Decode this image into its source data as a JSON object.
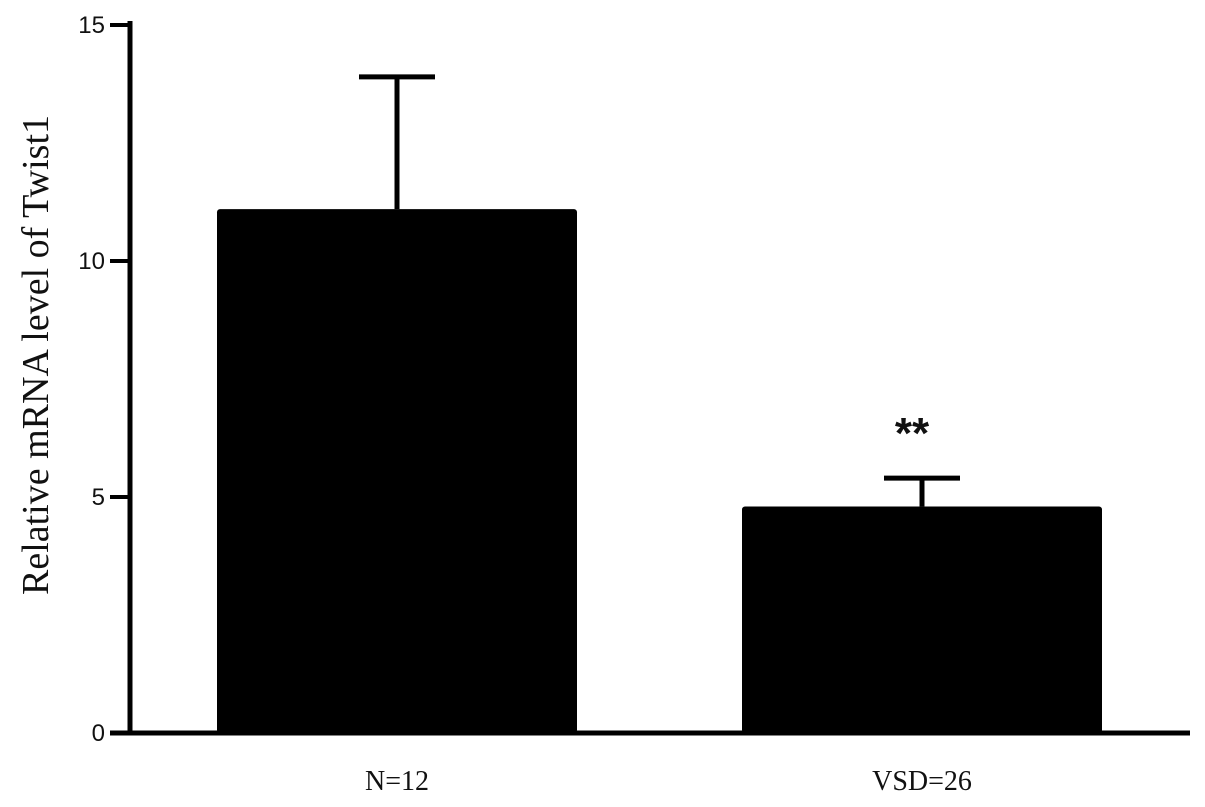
{
  "chart_data": {
    "type": "bar",
    "title": "",
    "xlabel": "",
    "ylabel": "Relative mRNA level of Twist1",
    "categories": [
      "N=12",
      "VSD=26"
    ],
    "values": [
      11.1,
      4.8
    ],
    "error_upper": [
      13.9,
      5.4
    ],
    "annotations": [
      "",
      "**"
    ],
    "ylim": [
      0,
      15
    ],
    "yticks": [
      0,
      5,
      10,
      15
    ],
    "ytick_labels": [
      "0",
      "5",
      "10",
      "15"
    ],
    "grid": false,
    "bar_color": "#000000"
  }
}
